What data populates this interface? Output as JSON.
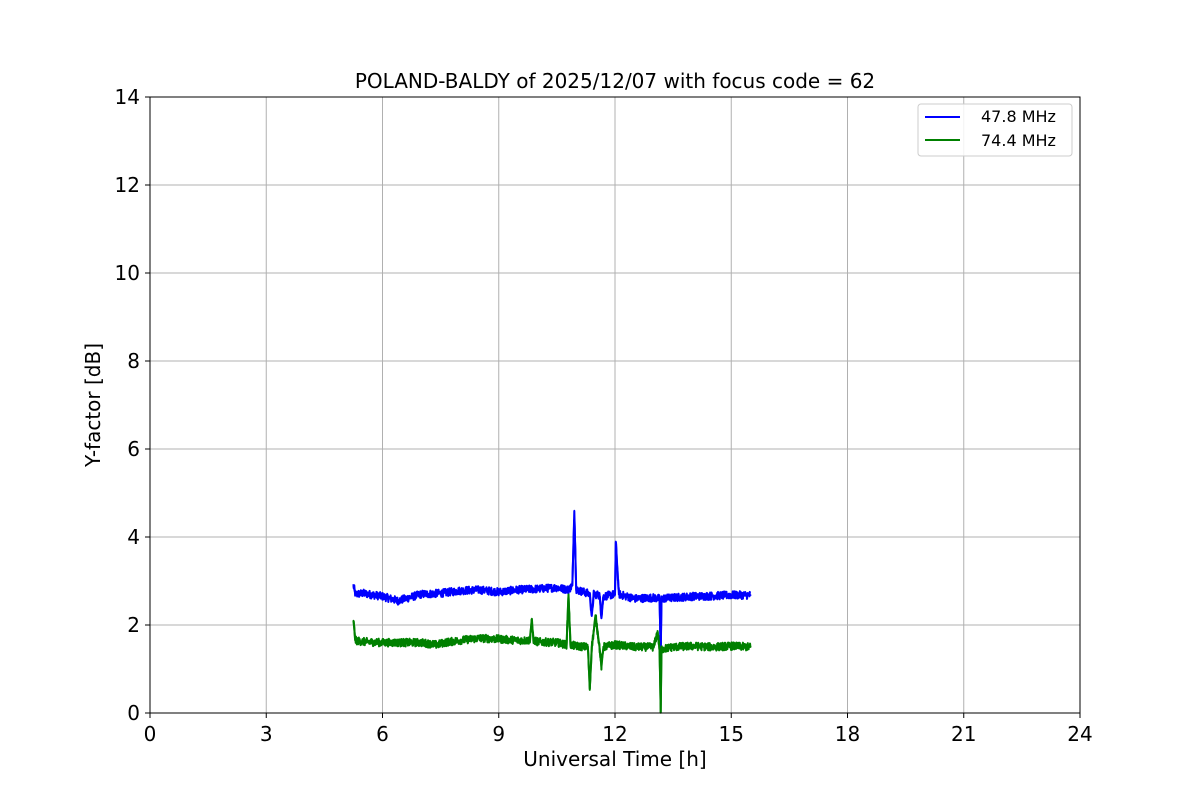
{
  "chart_data": {
    "type": "line",
    "title": "POLAND-BALDY of 2025/12/07 with focus code = 62",
    "xlabel": "Universal Time [h]",
    "ylabel": "Y-factor [dB]",
    "xlim": [
      0,
      24
    ],
    "ylim": [
      0,
      14
    ],
    "xticks": [
      0,
      3,
      6,
      9,
      12,
      15,
      18,
      21,
      24
    ],
    "yticks": [
      0,
      2,
      4,
      6,
      8,
      10,
      12,
      14
    ],
    "xtick_labels": [
      "0",
      "3",
      "6",
      "9",
      "12",
      "15",
      "18",
      "21",
      "24"
    ],
    "ytick_labels": [
      "0",
      "2",
      "4",
      "6",
      "8",
      "10",
      "12",
      "14"
    ],
    "grid": true,
    "legend_position": "top-right",
    "series": [
      {
        "name": "47.8 MHz",
        "color": "#0000ff",
        "x": [
          5.25,
          5.3,
          5.5,
          6.0,
          6.4,
          7.0,
          7.5,
          8.0,
          8.5,
          9.0,
          9.5,
          10.0,
          10.5,
          10.8,
          10.9,
          10.95,
          11.0,
          11.2,
          11.35,
          11.4,
          11.45,
          11.6,
          11.65,
          11.7,
          12.0,
          12.02,
          12.1,
          12.5,
          13.0,
          13.15,
          13.18,
          13.2,
          13.5,
          14.0,
          14.5,
          15.0,
          15.5
        ],
        "y": [
          2.9,
          2.7,
          2.72,
          2.65,
          2.55,
          2.7,
          2.72,
          2.78,
          2.8,
          2.75,
          2.8,
          2.82,
          2.85,
          2.8,
          2.9,
          4.6,
          2.8,
          2.75,
          2.7,
          2.2,
          2.7,
          2.68,
          2.2,
          2.65,
          2.7,
          3.9,
          2.7,
          2.6,
          2.62,
          2.6,
          1.3,
          2.6,
          2.62,
          2.65,
          2.66,
          2.68,
          2.68
        ]
      },
      {
        "name": "74.4 MHz",
        "color": "#008000",
        "x": [
          5.25,
          5.3,
          5.5,
          6.0,
          6.5,
          7.0,
          7.4,
          7.6,
          8.0,
          8.5,
          9.0,
          9.5,
          9.8,
          9.85,
          9.9,
          10.0,
          10.5,
          10.75,
          10.8,
          10.85,
          11.0,
          11.3,
          11.35,
          11.4,
          11.5,
          11.6,
          11.65,
          11.7,
          12.0,
          12.5,
          13.0,
          13.1,
          13.15,
          13.18,
          13.2,
          13.5,
          14.0,
          14.5,
          15.0,
          15.5
        ],
        "y": [
          2.1,
          1.65,
          1.62,
          1.6,
          1.6,
          1.6,
          1.55,
          1.6,
          1.65,
          1.7,
          1.68,
          1.65,
          1.65,
          2.1,
          1.65,
          1.62,
          1.6,
          1.55,
          2.7,
          1.55,
          1.52,
          1.5,
          0.55,
          1.5,
          2.2,
          1.5,
          1.05,
          1.5,
          1.55,
          1.5,
          1.5,
          1.85,
          1.45,
          0.0,
          1.45,
          1.5,
          1.52,
          1.5,
          1.52,
          1.5
        ]
      }
    ]
  }
}
